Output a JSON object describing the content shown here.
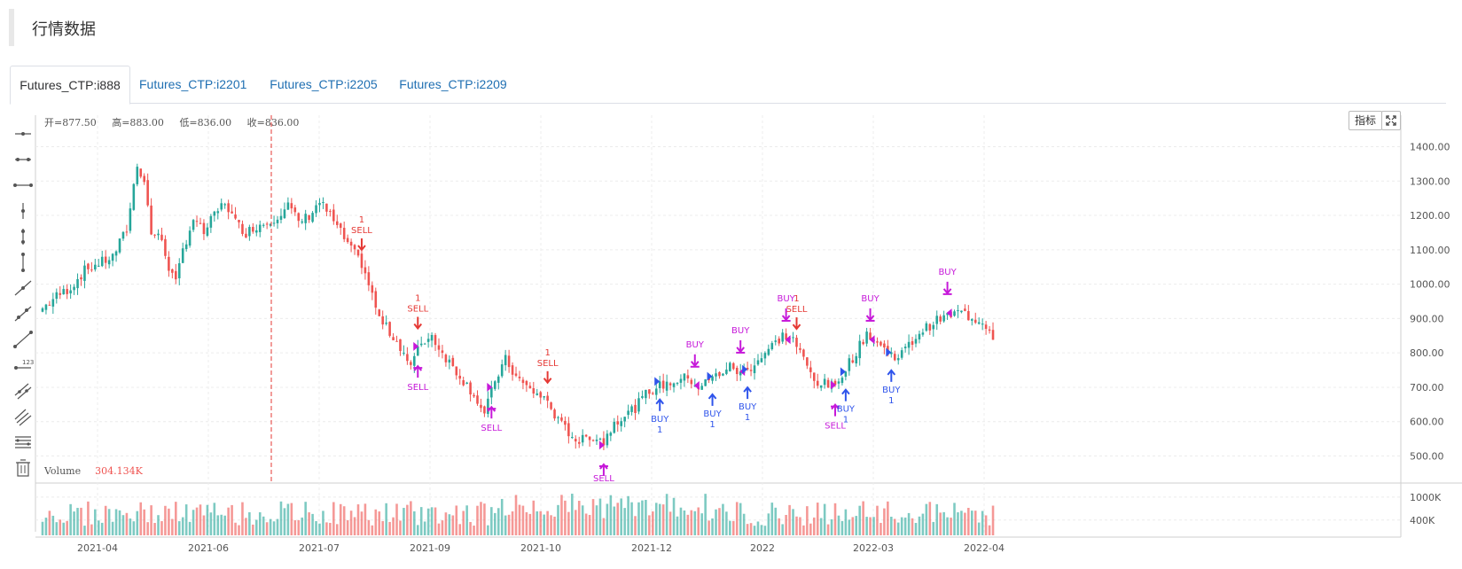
{
  "page": {
    "title": "行情数据"
  },
  "tabs": [
    {
      "label": "Futures_CTP:i888",
      "active": true
    },
    {
      "label": "Futures_CTP:i2201",
      "active": false
    },
    {
      "label": "Futures_CTP:i2205",
      "active": false
    },
    {
      "label": "Futures_CTP:i2209",
      "active": false
    }
  ],
  "ohlc": {
    "open": "开=877.50",
    "high": "高=883.00",
    "low": "低=836.00",
    "close": "收=836.00"
  },
  "toolbar": {
    "buttons": [
      "horizontal-line-icon",
      "horizontal-ray-icon",
      "horizontal-segment-icon",
      "vertical-line-icon",
      "vertical-ray-icon",
      "vertical-segment-icon",
      "trend-line-icon",
      "ray-line-icon",
      "segment-line-icon",
      "price-line-icon",
      "parallel-channel-icon",
      "fibonacci-line-icon",
      "price-channel-icon",
      "trash-icon"
    ],
    "price_line_label": "123"
  },
  "controls": {
    "indicator_label": "指标",
    "fullscreen_icon": "fullscreen-icon"
  },
  "volume": {
    "label": "Volume",
    "value": "304.134K"
  },
  "colors": {
    "up": "#26a69a",
    "down": "#ef5350",
    "buy_arrow": "#2f54eb",
    "sell_arrow": "#e53935",
    "signal_purple": "#c619d9",
    "cursor_line": "#e53935"
  },
  "chart_data": {
    "type": "candlestick",
    "price_axis": {
      "ticks": [
        "1400.00",
        "1300.00",
        "1200.00",
        "1100.00",
        "1000.00",
        "900.00",
        "800.00",
        "700.00",
        "600.00",
        "500.00"
      ],
      "ylim": [
        460,
        1440
      ]
    },
    "volume_axis": {
      "ticks": [
        "1000K",
        "400K"
      ],
      "ylim": [
        0,
        1300
      ]
    },
    "x_ticks": [
      "2021-04",
      "2021-06",
      "2021-07",
      "2021-09",
      "2021-10",
      "2021-12",
      "2022",
      "2022-03",
      "2022-04"
    ],
    "close_path": [
      [
        0,
        930
      ],
      [
        4,
        965
      ],
      [
        8,
        990
      ],
      [
        12,
        1040
      ],
      [
        16,
        1060
      ],
      [
        20,
        1080
      ],
      [
        24,
        1160
      ],
      [
        27,
        1350
      ],
      [
        29,
        1300
      ],
      [
        31,
        1150
      ],
      [
        34,
        1130
      ],
      [
        36,
        1050
      ],
      [
        38,
        1000
      ],
      [
        40,
        1100
      ],
      [
        43,
        1190
      ],
      [
        46,
        1150
      ],
      [
        49,
        1200
      ],
      [
        52,
        1240
      ],
      [
        55,
        1180
      ],
      [
        58,
        1150
      ],
      [
        61,
        1170
      ],
      [
        64,
        1180
      ],
      [
        67,
        1200
      ],
      [
        70,
        1230
      ],
      [
        73,
        1180
      ],
      [
        76,
        1200
      ],
      [
        79,
        1240
      ],
      [
        82,
        1200
      ],
      [
        85,
        1150
      ],
      [
        88,
        1100
      ],
      [
        91,
        1060
      ],
      [
        93,
        1000
      ],
      [
        96,
        900
      ],
      [
        99,
        860
      ],
      [
        102,
        820
      ],
      [
        105,
        760
      ],
      [
        108,
        830
      ],
      [
        111,
        850
      ],
      [
        114,
        800
      ],
      [
        117,
        760
      ],
      [
        120,
        720
      ],
      [
        123,
        680
      ],
      [
        126,
        620
      ],
      [
        129,
        720
      ],
      [
        132,
        780
      ],
      [
        135,
        730
      ],
      [
        138,
        700
      ],
      [
        141,
        680
      ],
      [
        144,
        660
      ],
      [
        147,
        600
      ],
      [
        150,
        570
      ],
      [
        153,
        540
      ],
      [
        156,
        560
      ],
      [
        159,
        550
      ],
      [
        160,
        540
      ],
      [
        163,
        600
      ],
      [
        166,
        620
      ],
      [
        169,
        640
      ],
      [
        172,
        680
      ],
      [
        175,
        700
      ],
      [
        178,
        710
      ],
      [
        181,
        720
      ],
      [
        184,
        730
      ],
      [
        187,
        700
      ],
      [
        190,
        720
      ],
      [
        193,
        740
      ],
      [
        196,
        760
      ],
      [
        199,
        740
      ],
      [
        202,
        760
      ],
      [
        205,
        790
      ],
      [
        208,
        820
      ],
      [
        211,
        850
      ],
      [
        214,
        840
      ],
      [
        217,
        780
      ],
      [
        220,
        720
      ],
      [
        223,
        710
      ],
      [
        226,
        700
      ],
      [
        229,
        760
      ],
      [
        232,
        800
      ],
      [
        235,
        860
      ],
      [
        238,
        830
      ],
      [
        241,
        800
      ],
      [
        244,
        790
      ],
      [
        247,
        820
      ],
      [
        250,
        860
      ],
      [
        253,
        880
      ],
      [
        256,
        900
      ],
      [
        259,
        910
      ],
      [
        262,
        920
      ],
      [
        265,
        900
      ],
      [
        268,
        895
      ],
      [
        271,
        850
      ]
    ],
    "signals": [
      {
        "type": "SELL",
        "label": "SELL",
        "order": "1",
        "index": 91
      },
      {
        "type": "SELL_CLOSE",
        "label": "SELL",
        "index": 107
      },
      {
        "type": "SELL",
        "label": "SELL",
        "order": "1",
        "index": 107
      },
      {
        "type": "SELL_CLOSE",
        "label": "SELL",
        "index": 128
      },
      {
        "type": "SELL",
        "label": "SELL",
        "order": "1",
        "index": 144
      },
      {
        "type": "SELL_CLOSE",
        "label": "SELL",
        "index": 160
      },
      {
        "type": "BUY",
        "label": "BUY",
        "order": "1",
        "index": 176
      },
      {
        "type": "BUY_CLOSE",
        "label": "BUY",
        "index": 186
      },
      {
        "type": "BUY",
        "label": "BUY",
        "order": "1",
        "index": 191
      },
      {
        "type": "BUY_CLOSE",
        "label": "BUY",
        "index": 199
      },
      {
        "type": "BUY",
        "label": "BUY",
        "order": "1",
        "index": 201
      },
      {
        "type": "BUY_CLOSE",
        "label": "BUY",
        "index": 212
      },
      {
        "type": "SELL",
        "label": "SELL",
        "order": "1",
        "index": 215
      },
      {
        "type": "SELL_CLOSE",
        "label": "SELL",
        "index": 226
      },
      {
        "type": "BUY",
        "label": "BUY",
        "order": "1",
        "index": 229
      },
      {
        "type": "BUY_CLOSE",
        "label": "BUY",
        "index": 236
      },
      {
        "type": "BUY",
        "label": "BUY",
        "order": "1",
        "index": 242
      },
      {
        "type": "BUY_CLOSE",
        "label": "BUY",
        "index": 258
      }
    ],
    "bar_count": 272
  }
}
